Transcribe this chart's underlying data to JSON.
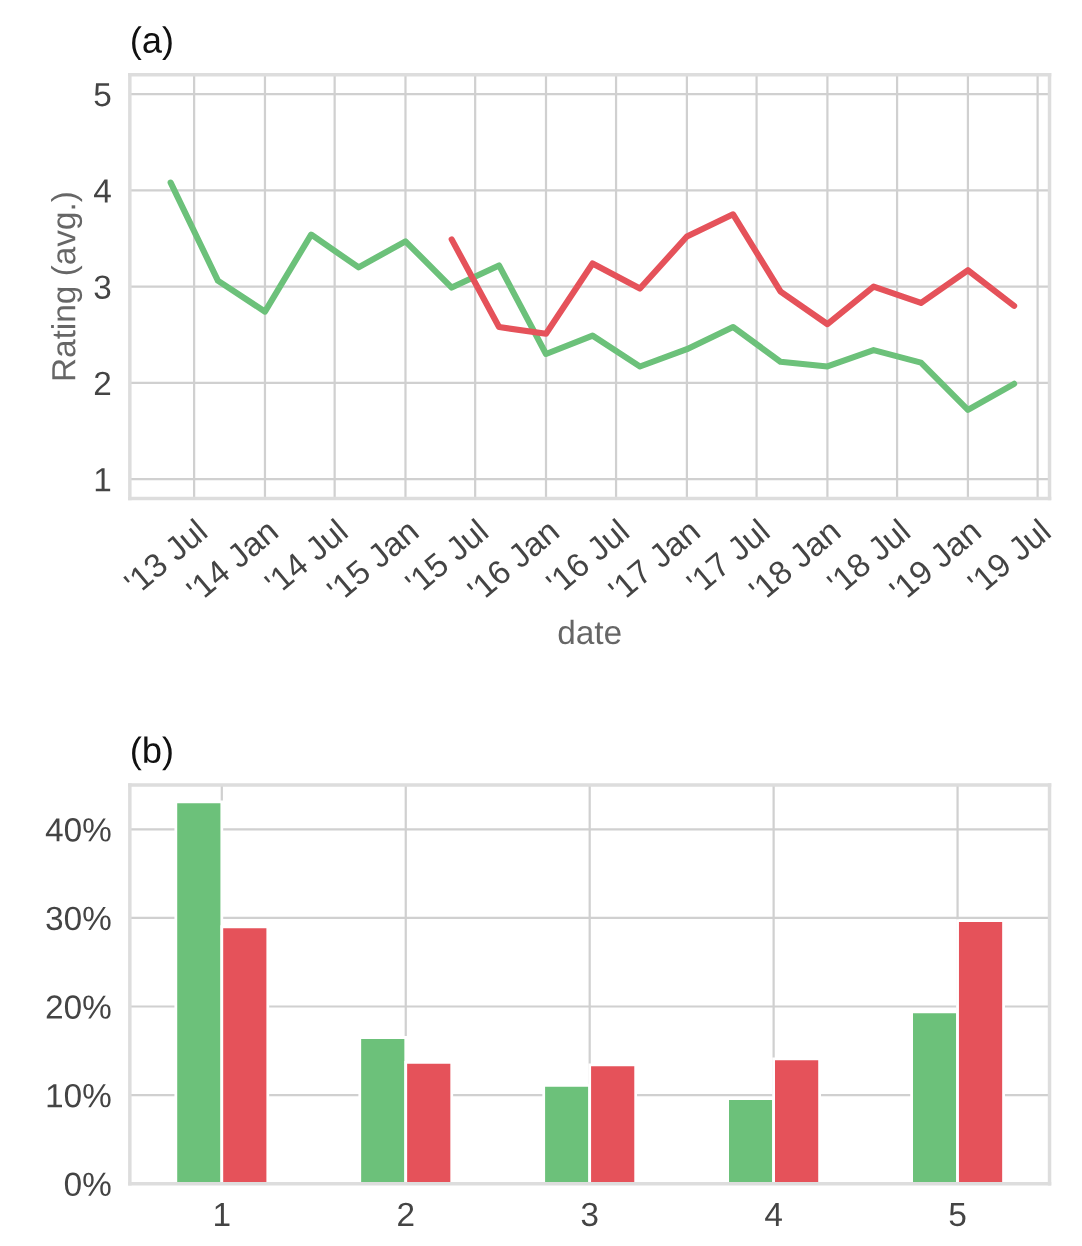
{
  "chart_data": [
    {
      "type": "line",
      "title": "(a)",
      "xlabel": "date",
      "ylabel": "Rating (avg.)",
      "grid": true,
      "xlim": [
        "2013-01-15",
        "2019-08-01"
      ],
      "ylim": [
        0.8,
        5.2
      ],
      "yticks": [
        1,
        2,
        3,
        4,
        5
      ],
      "xticks": [
        {
          "value": "2013-07-01",
          "label": "'13 Jul"
        },
        {
          "value": "2014-01-01",
          "label": "'14 Jan"
        },
        {
          "value": "2014-07-01",
          "label": "'14 Jul"
        },
        {
          "value": "2015-01-01",
          "label": "'15 Jan"
        },
        {
          "value": "2015-07-01",
          "label": "'15 Jul"
        },
        {
          "value": "2016-01-01",
          "label": "'16 Jan"
        },
        {
          "value": "2016-07-01",
          "label": "'16 Jul"
        },
        {
          "value": "2017-01-01",
          "label": "'17 Jan"
        },
        {
          "value": "2017-07-01",
          "label": "'17 Jul"
        },
        {
          "value": "2018-01-01",
          "label": "'18 Jan"
        },
        {
          "value": "2018-07-01",
          "label": "'18 Jul"
        },
        {
          "value": "2019-01-01",
          "label": "'19 Jan"
        },
        {
          "value": "2019-07-01",
          "label": "'19 Jul"
        }
      ],
      "series": [
        {
          "color": "#6cc17a",
          "x": [
            "2013-05",
            "2013-09",
            "2014-01",
            "2014-05",
            "2014-09",
            "2015-01",
            "2015-05",
            "2015-09",
            "2016-01",
            "2016-05",
            "2016-09",
            "2017-01",
            "2017-05",
            "2017-09",
            "2018-01",
            "2018-05",
            "2018-09",
            "2019-01",
            "2019-05"
          ],
          "values": [
            4.08,
            3.06,
            2.74,
            3.54,
            3.2,
            3.47,
            2.99,
            3.22,
            2.3,
            2.49,
            2.17,
            2.35,
            2.58,
            2.22,
            2.17,
            2.34,
            2.21,
            1.72,
            1.99
          ]
        },
        {
          "color": "#e5525a",
          "x": [
            "2015-05",
            "2015-09",
            "2016-01",
            "2016-05",
            "2016-09",
            "2017-01",
            "2017-05",
            "2017-09",
            "2018-01",
            "2018-05",
            "2018-09",
            "2019-01",
            "2019-05"
          ],
          "values": [
            3.49,
            2.58,
            2.51,
            3.24,
            2.98,
            3.52,
            3.75,
            2.95,
            2.61,
            3.0,
            2.83,
            3.17,
            2.8
          ]
        }
      ]
    },
    {
      "type": "bar",
      "title": "(b)",
      "grid": true,
      "categories": [
        "1",
        "2",
        "3",
        "4",
        "5"
      ],
      "ylim": [
        0,
        45
      ],
      "yticks": [
        {
          "value": 0,
          "label": "0%"
        },
        {
          "value": 10,
          "label": "10%"
        },
        {
          "value": 20,
          "label": "20%"
        },
        {
          "value": 30,
          "label": "30%"
        },
        {
          "value": 40,
          "label": "40%"
        }
      ],
      "series": [
        {
          "color": "#6cc17a",
          "values": [
            43.1,
            16.5,
            11.1,
            9.6,
            19.4
          ]
        },
        {
          "color": "#e5525a",
          "values": [
            29.0,
            13.7,
            13.4,
            14.1,
            29.7
          ]
        }
      ]
    }
  ]
}
